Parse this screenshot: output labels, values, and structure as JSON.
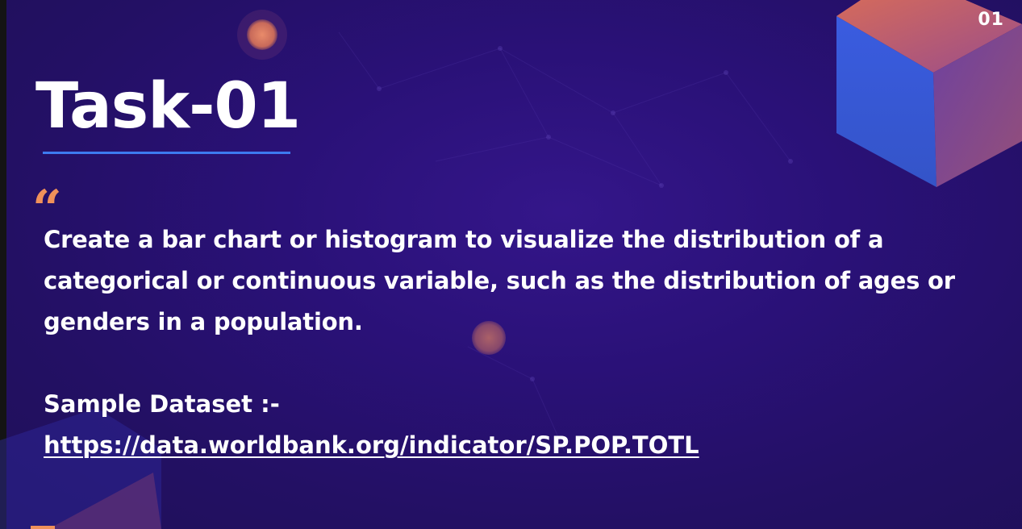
{
  "slide": {
    "page_number": "01",
    "title": "Task-01",
    "quote_mark": "“",
    "description": "Create a bar chart or histogram to visualize the distribution of a categorical or continuous variable, such as the distribution of ages or genders in a population.",
    "dataset_label": "Sample Dataset :-",
    "dataset_link": "https://data.worldbank.org/indicator/SP.POP.TOTL"
  },
  "colors": {
    "background": "#2a1178",
    "accent_blue": "#3d7bf0",
    "accent_orange": "#f0915a",
    "text": "#ffffff"
  }
}
